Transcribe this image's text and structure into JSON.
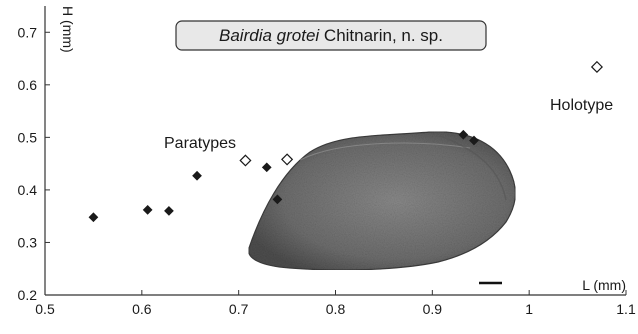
{
  "chart_data": {
    "type": "scatter",
    "title_italic": "Bairdia grotei",
    "title_rest": " Chitnarin, n. sp.",
    "xlabel": "L (mm)",
    "ylabel": "H (mm)",
    "xlim": [
      0.5,
      1.1
    ],
    "ylim": [
      0.2,
      0.75
    ],
    "xticks": [
      "0.5",
      "0.6",
      "0.7",
      "0.8",
      "0.9",
      "1",
      "1.1"
    ],
    "xtick_values": [
      0.5,
      0.6,
      0.7,
      0.8,
      0.9,
      1.0,
      1.1
    ],
    "yticks": [
      "0.2",
      "0.3",
      "0.4",
      "0.5",
      "0.6",
      "0.7"
    ],
    "ytick_values": [
      0.2,
      0.3,
      0.4,
      0.5,
      0.6,
      0.7
    ],
    "grid": false,
    "series": [
      {
        "marker": "filled-diamond",
        "color": "#1a1a1a",
        "points": [
          {
            "x": 0.55,
            "y": 0.348
          },
          {
            "x": 0.606,
            "y": 0.362
          },
          {
            "x": 0.628,
            "y": 0.36
          },
          {
            "x": 0.657,
            "y": 0.427
          },
          {
            "x": 0.729,
            "y": 0.443
          },
          {
            "x": 0.74,
            "y": 0.382
          },
          {
            "x": 0.932,
            "y": 0.505
          },
          {
            "x": 0.943,
            "y": 0.494
          }
        ]
      },
      {
        "marker": "open-diamond",
        "color": "#1a1a1a",
        "points": [
          {
            "x": 0.707,
            "y": 0.456
          },
          {
            "x": 0.75,
            "y": 0.458
          },
          {
            "x": 1.07,
            "y": 0.634
          }
        ]
      }
    ],
    "annotations": [
      {
        "text": "Paratypes"
      },
      {
        "text": "Holotype"
      }
    ],
    "inset_image": "ostracod-carapace-photo",
    "scale_bar": true
  }
}
